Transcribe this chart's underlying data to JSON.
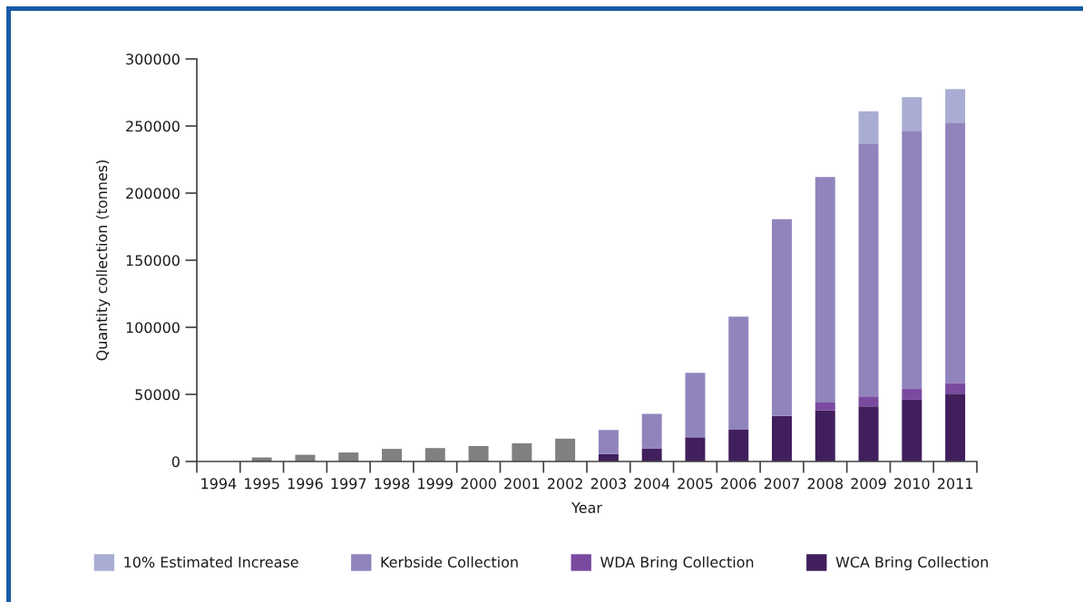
{
  "chart_data": {
    "type": "bar",
    "stacked": true,
    "xlabel": "Year",
    "ylabel": "Quantity collection (tonnes)",
    "categories": [
      "1994",
      "1995",
      "1996",
      "1997",
      "1998",
      "1999",
      "2000",
      "2001",
      "2002",
      "2003",
      "2004",
      "2005",
      "2006",
      "2007",
      "2008",
      "2009",
      "2010",
      "2011"
    ],
    "series": [
      {
        "color": "#808080",
        "values": [
          null,
          3000,
          5000,
          6700,
          9400,
          10000,
          11500,
          13500,
          17000,
          null,
          null,
          null,
          null,
          null,
          null,
          null,
          null,
          null
        ]
      },
      {
        "name": "WCA Bring Collection",
        "color": "#411f5c",
        "values": [
          null,
          null,
          null,
          null,
          null,
          null,
          null,
          null,
          null,
          5500,
          9500,
          18000,
          24000,
          34000,
          38000,
          41000,
          46000,
          50500
        ]
      },
      {
        "name": "WDA Bring Collection",
        "color": "#7a4aa0",
        "values": [
          null,
          null,
          null,
          null,
          null,
          null,
          null,
          null,
          null,
          null,
          null,
          null,
          null,
          null,
          6000,
          7500,
          8000,
          8000
        ]
      },
      {
        "name": "Kerbside Collection",
        "color": "#9184bd",
        "values": [
          null,
          null,
          null,
          null,
          null,
          null,
          null,
          null,
          null,
          18000,
          26000,
          48000,
          84000,
          146500,
          168000,
          188000,
          192500,
          194000
        ]
      },
      {
        "name": "10% Estimated Increase",
        "color": "#a9acd3",
        "values": [
          null,
          null,
          null,
          null,
          null,
          null,
          null,
          null,
          null,
          null,
          null,
          null,
          null,
          null,
          null,
          24500,
          25000,
          25000
        ]
      }
    ],
    "ylim": [
      0,
      300000
    ],
    "yticks": [
      0,
      50000,
      100000,
      150000,
      200000,
      250000,
      300000
    ],
    "legend": "bottom"
  }
}
